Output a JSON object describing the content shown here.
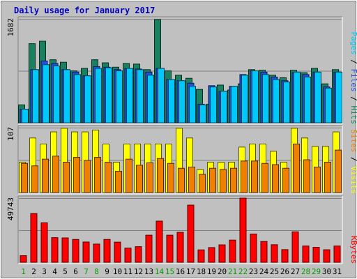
{
  "chart_data": {
    "title": "Daily usage for January 2017",
    "categories": [
      "1",
      "2",
      "3",
      "4",
      "5",
      "6",
      "7",
      "8",
      "9",
      "10",
      "11",
      "12",
      "13",
      "14",
      "15",
      "16",
      "17",
      "18",
      "19",
      "20",
      "21",
      "22",
      "23",
      "24",
      "25",
      "26",
      "27",
      "28",
      "29",
      "30",
      "31"
    ],
    "weekend_days": [
      "1",
      "7",
      "8",
      "14",
      "15",
      "21",
      "22",
      "28",
      "29"
    ],
    "panels": [
      {
        "type": "bar",
        "max_label": "1682",
        "ymax": 1682,
        "series": [
          {
            "name": "Hits",
            "color": "#1a8060",
            "values": [
              290,
              1280,
              1320,
              1020,
              980,
              840,
              880,
              1020,
              970,
              900,
              960,
              950,
              860,
              1670,
              840,
              770,
              720,
              540,
              300,
              610,
              530,
              630,
              860,
              850,
              770,
              730,
              850,
              810,
              880,
              630,
              860
            ]
          },
          {
            "name": "Files",
            "color": "#2050e0",
            "values": [
              220,
              860,
              1000,
              960,
              860,
              820,
              760,
              910,
              900,
              860,
              880,
              870,
              820,
              880,
              700,
              680,
              640,
              300,
              600,
              510,
              590,
              780,
              840,
              820,
              740,
              680,
              810,
              780,
              820,
              580,
              820
            ]
          },
          {
            "name": "Pages",
            "color": "#00c8f8",
            "values": [
              220,
              860,
              940,
              920,
              860,
              780,
              760,
              880,
              890,
              840,
              880,
              860,
              770,
              880,
              700,
              680,
              590,
              290,
              580,
              510,
              590,
              770,
              840,
              780,
              700,
              660,
              820,
              740,
              820,
              560,
              820
            ]
          }
        ],
        "legend": [
          {
            "label": "Pages",
            "color": "#00c8f8"
          },
          {
            "label": "Files",
            "color": "#2050e0"
          },
          {
            "label": "Hits",
            "color": "#1a8060"
          }
        ]
      },
      {
        "type": "bar",
        "max_label": "107",
        "ymax": 107,
        "series": [
          {
            "name": "Visits",
            "color": "#ffff00",
            "values": [
              50,
              90,
              80,
              100,
              106,
              100,
              100,
              103,
              80,
              50,
              80,
              80,
              80,
              80,
              80,
              106,
              90,
              38,
              50,
              50,
              50,
              75,
              80,
              80,
              68,
              50,
              106,
              90,
              76,
              76,
              100
            ]
          },
          {
            "name": "Sites",
            "color": "#f08000",
            "values": [
              48,
              44,
              55,
              60,
              50,
              58,
              53,
              58,
              50,
              35,
              55,
              45,
              49,
              56,
              48,
              40,
              42,
              30,
              40,
              38,
              40,
              52,
              52,
              48,
              46,
              40,
              80,
              54,
              42,
              50,
              70
            ]
          }
        ],
        "legend": [
          {
            "label": "Sites",
            "color": "#f08000"
          },
          {
            "label": "Visits",
            "color": "#ffff00"
          }
        ]
      },
      {
        "type": "bar",
        "max_label": "49743",
        "ymax": 49743,
        "series": [
          {
            "name": "KBytes",
            "color": "#ff0000",
            "values": [
              5100,
              37800,
              30600,
              19100,
              18900,
              17700,
              15700,
              14100,
              17700,
              15600,
              11000,
              12100,
              21000,
              31900,
              21000,
              23200,
              44300,
              9600,
              11400,
              13500,
              17200,
              49700,
              21900,
              16100,
              13600,
              9800,
              23600,
              12600,
              11600,
              9700,
              12600
            ]
          }
        ],
        "legend": [
          {
            "label": "KBytes",
            "color": "#ff0000"
          }
        ]
      }
    ]
  }
}
